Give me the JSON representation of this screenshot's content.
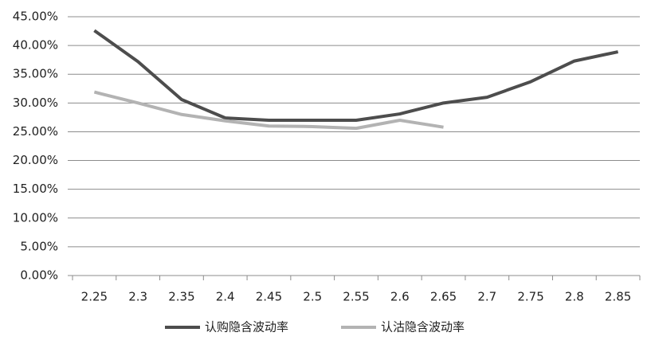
{
  "chart_data": {
    "type": "line",
    "categories": [
      "2.25",
      "2.3",
      "2.35",
      "2.4",
      "2.45",
      "2.5",
      "2.55",
      "2.6",
      "2.65",
      "2.7",
      "2.75",
      "2.8",
      "2.85"
    ],
    "series": [
      {
        "name": "认购隐含波动率",
        "color": "#4d4d4d",
        "values": [
          42.6,
          37.2,
          30.6,
          27.4,
          27.0,
          27.0,
          27.0,
          28.1,
          30.0,
          31.0,
          33.7,
          37.3,
          38.9
        ]
      },
      {
        "name": "认沽隐含波动率",
        "color": "#b3b3b3",
        "values": [
          31.9,
          30.0,
          28.0,
          26.9,
          26.0,
          25.9,
          25.6,
          27.0,
          25.8,
          null,
          null,
          null,
          null
        ]
      }
    ],
    "ylim": [
      0,
      45
    ],
    "yticks": [
      {
        "value": 0,
        "label": "0.00%"
      },
      {
        "value": 5,
        "label": "5.00%"
      },
      {
        "value": 10,
        "label": "10.00%"
      },
      {
        "value": 15,
        "label": "15.00%"
      },
      {
        "value": 20,
        "label": "20.00%"
      },
      {
        "value": 25,
        "label": "25.00%"
      },
      {
        "value": 30,
        "label": "30.00%"
      },
      {
        "value": 35,
        "label": "35.00%"
      },
      {
        "value": 40,
        "label": "40.00%"
      },
      {
        "value": 45,
        "label": "45.00%"
      }
    ],
    "grid": true,
    "legend": "bottom"
  }
}
